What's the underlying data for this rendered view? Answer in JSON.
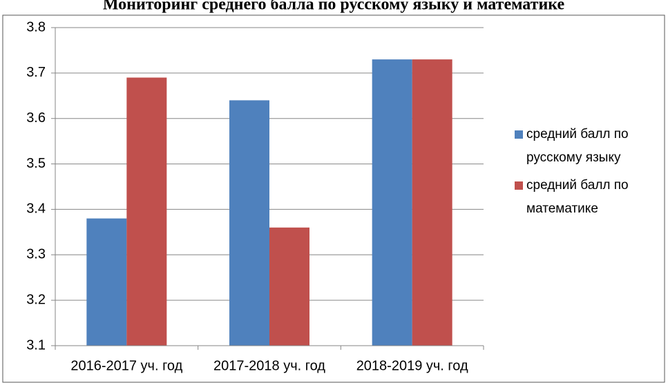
{
  "chart_data": {
    "type": "bar",
    "title": "Мониторинг среднего балла по русскому языку и математике",
    "categories": [
      "2016-2017 уч. год",
      "2017-2018 уч. год",
      "2018-2019 уч. год"
    ],
    "series": [
      {
        "name": "средний балл по русскому языку",
        "color": "#4f81bd",
        "values": [
          3.38,
          3.64,
          3.73
        ]
      },
      {
        "name": "средний балл по математике",
        "color": "#c0504d",
        "values": [
          3.69,
          3.36,
          3.73
        ]
      }
    ],
    "ylim": [
      3.1,
      3.8
    ],
    "yticks": [
      3.1,
      3.2,
      3.3,
      3.4,
      3.5,
      3.6,
      3.7,
      3.8
    ],
    "grid": true,
    "legend": "right"
  }
}
